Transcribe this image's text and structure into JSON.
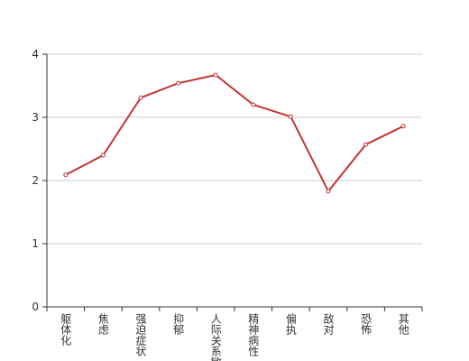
{
  "chart_data": {
    "type": "line",
    "categories": [
      "躯体化",
      "焦虑",
      "强迫症状",
      "抑郁",
      "人际关系敏感",
      "精神病性",
      "偏执",
      "敌对",
      "恐怖",
      "其他"
    ],
    "values": [
      2.09,
      2.4,
      3.31,
      3.54,
      3.67,
      3.2,
      3.01,
      1.83,
      2.57,
      2.86
    ],
    "color": "#c23531",
    "ylim": [
      0,
      4
    ],
    "yticks": [
      0,
      1,
      2,
      3,
      4
    ],
    "grid": true
  }
}
